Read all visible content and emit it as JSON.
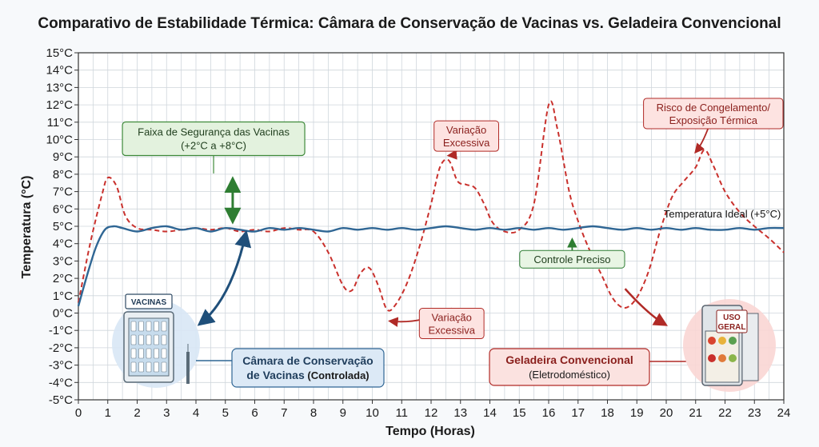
{
  "chart_data": {
    "type": "line",
    "title": "Comparativo de Estabilidade Térmica: Câmara de Conservação de Vacinas vs. Geladeira Convencional",
    "xlabel": "Tempo (Horas)",
    "ylabel": "Temperatura (°C)",
    "xlim": [
      0,
      24
    ],
    "ylim": [
      -5,
      15
    ],
    "grid": true,
    "x_ticks": [
      "0",
      "1",
      "2",
      "3",
      "4",
      "5",
      "6",
      "7",
      "8",
      "9",
      "10",
      "11",
      "12",
      "13",
      "14",
      "15",
      "16",
      "17",
      "18",
      "19",
      "20",
      "21",
      "22",
      "23",
      "24"
    ],
    "y_ticks": [
      "-5°C",
      "-4°C",
      "-3°C",
      "-2°C",
      "-1°C",
      "0°C",
      "1°C",
      "2°C",
      "3°C",
      "4°C",
      "5°C",
      "6°C",
      "7°C",
      "8°C",
      "9°C",
      "10°C",
      "11°C",
      "12°C",
      "13°C",
      "14°C",
      "15°C"
    ],
    "safety_band": {
      "min": 2,
      "max": 8,
      "label_line1": "Faixa de Segurança das Vacinas",
      "label_line2": "(+2°C a +8°C)",
      "fill": "#cfe9c6",
      "stroke": "#3e8a3a"
    },
    "ideal_line": {
      "y": 5,
      "label": "Temperatura Ideal (+5°C)",
      "color": "#2e7d32"
    },
    "series": [
      {
        "name": "Câmara de Conservação de Vacinas (Controlada)",
        "color": "#2f6694",
        "style": "solid",
        "x": [
          0,
          0.3,
          0.6,
          0.9,
          1.2,
          1.5,
          2,
          2.5,
          3,
          3.5,
          4,
          4.5,
          5,
          5.5,
          6,
          6.5,
          7,
          7.5,
          8,
          8.5,
          9,
          9.5,
          10,
          10.5,
          11,
          11.5,
          12,
          12.5,
          13,
          13.5,
          14,
          14.5,
          15,
          15.5,
          16,
          16.5,
          17,
          17.5,
          18,
          18.5,
          19,
          19.5,
          20,
          20.5,
          21,
          21.5,
          22,
          22.5,
          23,
          23.5,
          24
        ],
        "y": [
          0.4,
          2.2,
          3.8,
          4.8,
          5.0,
          4.9,
          4.7,
          4.9,
          5.0,
          4.8,
          4.9,
          4.7,
          4.9,
          4.8,
          4.7,
          4.9,
          4.8,
          4.9,
          4.8,
          4.7,
          4.9,
          4.8,
          4.9,
          4.8,
          4.9,
          4.8,
          4.9,
          5.0,
          4.9,
          4.8,
          4.9,
          4.8,
          4.9,
          4.8,
          4.9,
          4.8,
          4.9,
          5.0,
          4.9,
          4.8,
          4.9,
          4.8,
          4.9,
          4.8,
          4.9,
          4.8,
          4.8,
          4.9,
          4.8,
          4.9,
          4.9
        ]
      },
      {
        "name": "Geladeira Convencional (Eletrodoméstico)",
        "color": "#c9302c",
        "style": "dashed",
        "x": [
          0,
          0.4,
          0.8,
          1.0,
          1.3,
          1.6,
          2.0,
          2.5,
          3.0,
          3.5,
          4.0,
          4.5,
          5.0,
          5.5,
          6.0,
          6.5,
          7.0,
          7.5,
          8.0,
          8.5,
          9.0,
          9.3,
          9.6,
          9.9,
          10.2,
          10.5,
          10.8,
          11.2,
          11.6,
          12.0,
          12.3,
          12.6,
          12.9,
          13.2,
          13.5,
          13.8,
          14.1,
          14.5,
          15.0,
          15.5,
          16.0,
          16.3,
          16.7,
          17.0,
          17.4,
          17.8,
          18.2,
          18.6,
          19.0,
          19.4,
          19.8,
          20.2,
          20.6,
          21.0,
          21.3,
          21.6,
          22.0,
          22.5,
          23.0,
          23.5,
          24.0
        ],
        "y": [
          0.6,
          4.0,
          6.8,
          7.8,
          7.3,
          5.6,
          4.9,
          4.8,
          4.7,
          4.8,
          4.9,
          4.8,
          4.9,
          4.7,
          4.8,
          4.7,
          4.9,
          4.8,
          4.7,
          3.5,
          1.6,
          1.3,
          2.3,
          2.6,
          1.6,
          0.2,
          0.5,
          1.8,
          3.8,
          6.3,
          8.4,
          8.8,
          7.6,
          7.4,
          7.2,
          6.3,
          5.2,
          4.7,
          4.8,
          6.3,
          12.0,
          10.6,
          7.0,
          5.3,
          3.6,
          2.2,
          0.8,
          0.3,
          0.9,
          2.4,
          4.8,
          6.7,
          7.6,
          8.4,
          9.4,
          8.5,
          7.0,
          5.8,
          5.0,
          4.3,
          3.5
        ]
      }
    ],
    "annotations": [
      {
        "text_line1": "Variação",
        "text_line2": "Excessiva",
        "at_x": 12.6,
        "at_y": 8.8,
        "box_x": 13.2,
        "box_y": 10.2
      },
      {
        "text_line1": "Variação",
        "text_line2": "Excessiva",
        "at_x": 10.6,
        "at_y": 0.0,
        "box_x": 12.7,
        "box_y": -0.6
      },
      {
        "text_line1": "Risco de Congelamento/",
        "text_line2": "Exposição Térmica",
        "at_x": 21.0,
        "at_y": 9.0,
        "box_x": 21.6,
        "box_y": 11.5
      },
      {
        "text_line1": "Controle Preciso",
        "text_line2": "",
        "at_x": 16.8,
        "at_y": 4.7,
        "box_x": 16.8,
        "box_y": 3.1
      }
    ],
    "legend": [
      {
        "strong": "Câmara de Conservação",
        "strong2": "de Vacinas",
        "normal": " (Controlada)",
        "color": "#2f6694",
        "bg": "#dce9f6"
      },
      {
        "strong": "Geladeira Convencional",
        "strong2": "",
        "normal": "(Eletrodoméstico)",
        "color": "#b02a26",
        "bg": "#fbe2e0"
      }
    ],
    "illustrations": {
      "fridge1_label": "VACINAS",
      "fridge2_label_line1": "USO",
      "fridge2_label_line2": "GERAL"
    }
  }
}
